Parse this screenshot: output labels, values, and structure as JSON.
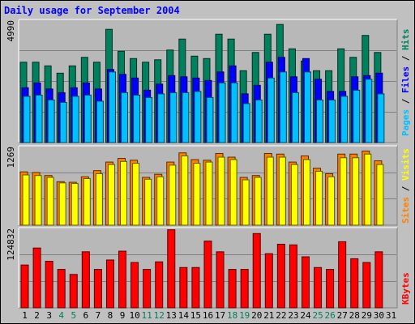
{
  "chart_title": "Daily usage for September 2004",
  "colors": {
    "background": "#c0c0c0",
    "plot_bg": "#b8b8b8",
    "title": "#0000ff",
    "hits": "#00805c",
    "files": "#0000ff",
    "pages": "#00c0ff",
    "visits": "#ffff00",
    "sites": "#ff8000",
    "kbytes": "#ff0000",
    "weekend_label": "#00805c",
    "weekday_label": "#000000"
  },
  "legends": {
    "pages": "Pages",
    "files": "Files",
    "hits": "Hits",
    "sites": "Sites",
    "visits": "Visits",
    "kbytes": "KBytes",
    "sep": " / "
  },
  "chart_data": [
    {
      "type": "bar",
      "name": "hits-files-pages",
      "y_max_label": "4990",
      "ylim": [
        0,
        4990
      ],
      "x": [
        "1",
        "2",
        "3",
        "4",
        "5",
        "6",
        "7",
        "8",
        "9",
        "10",
        "11",
        "12",
        "13",
        "14",
        "15",
        "16",
        "17",
        "18",
        "19",
        "20",
        "21",
        "22",
        "23",
        "24",
        "25",
        "26",
        "27",
        "28",
        "29",
        "30",
        "31"
      ],
      "series": [
        {
          "name": "Hits",
          "values": [
            3300,
            3300,
            3150,
            2850,
            3150,
            3500,
            3300,
            4650,
            3750,
            3450,
            3300,
            3400,
            3800,
            4250,
            3550,
            3450,
            4450,
            4250,
            2950,
            3700,
            4450,
            4850,
            3850,
            3350,
            2950,
            2950,
            3850,
            3500,
            4400,
            3700,
            0
          ]
        },
        {
          "name": "Files",
          "values": [
            2250,
            2450,
            2200,
            2050,
            2250,
            2450,
            2200,
            3000,
            2800,
            2650,
            2150,
            2400,
            2750,
            2700,
            2650,
            2550,
            2900,
            3150,
            2000,
            2350,
            3300,
            3500,
            2700,
            3450,
            2600,
            2100,
            2100,
            2700,
            2750,
            2850,
            0
          ]
        },
        {
          "name": "Pages",
          "values": [
            1900,
            1950,
            1750,
            1650,
            1900,
            1950,
            1700,
            2900,
            2050,
            1950,
            1850,
            2000,
            2050,
            2050,
            2100,
            1850,
            2450,
            2450,
            1600,
            1750,
            2650,
            2900,
            2050,
            2900,
            1750,
            1750,
            1900,
            2150,
            2600,
            2000,
            0
          ]
        }
      ]
    },
    {
      "type": "bar",
      "name": "sites-visits",
      "y_max_label": "1269",
      "ylim": [
        0,
        1269
      ],
      "x": [
        "1",
        "2",
        "3",
        "4",
        "5",
        "6",
        "7",
        "8",
        "9",
        "10",
        "11",
        "12",
        "13",
        "14",
        "15",
        "16",
        "17",
        "18",
        "19",
        "20",
        "21",
        "22",
        "23",
        "24",
        "25",
        "26",
        "27",
        "28",
        "29",
        "30",
        "31"
      ],
      "series": [
        {
          "name": "Sites",
          "values": [
            870,
            860,
            810,
            710,
            700,
            790,
            890,
            1030,
            1090,
            1060,
            780,
            830,
            1030,
            1180,
            1070,
            1060,
            1170,
            1110,
            780,
            810,
            1170,
            1160,
            1030,
            1130,
            930,
            840,
            1160,
            1160,
            1210,
            1050,
            0
          ]
        },
        {
          "name": "Visits",
          "values": [
            820,
            810,
            780,
            690,
            680,
            760,
            840,
            990,
            1040,
            1010,
            750,
            790,
            980,
            1130,
            1010,
            1030,
            1110,
            1070,
            740,
            780,
            1110,
            1110,
            990,
            1070,
            880,
            790,
            1100,
            1100,
            1160,
            990,
            0
          ]
        }
      ]
    },
    {
      "type": "bar",
      "name": "kbytes",
      "y_max_label": "124832",
      "ylim": [
        0,
        124832
      ],
      "x": [
        "1",
        "2",
        "3",
        "4",
        "5",
        "6",
        "7",
        "8",
        "9",
        "10",
        "11",
        "12",
        "13",
        "14",
        "15",
        "16",
        "17",
        "18",
        "19",
        "20",
        "21",
        "22",
        "23",
        "24",
        "25",
        "26",
        "27",
        "28",
        "29",
        "30",
        "31"
      ],
      "series": [
        {
          "name": "KBytes",
          "values": [
            68000,
            95000,
            74000,
            61000,
            53000,
            89000,
            61000,
            76000,
            90000,
            72000,
            61000,
            73000,
            124000,
            64000,
            64000,
            106000,
            89000,
            61000,
            61000,
            118000,
            86000,
            101000,
            100000,
            81000,
            64000,
            61000,
            105000,
            78000,
            72000,
            89000,
            0
          ]
        }
      ]
    }
  ],
  "weekend_days": [
    4,
    5,
    11,
    12,
    18,
    19,
    25,
    26
  ]
}
